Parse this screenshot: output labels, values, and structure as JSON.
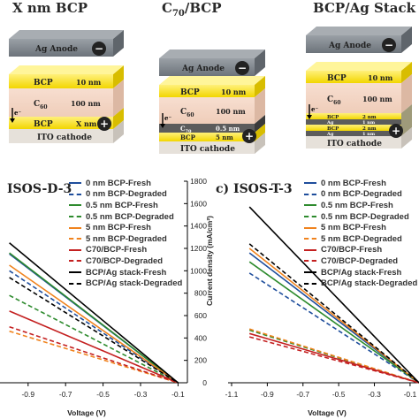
{
  "stacks": [
    {
      "title": "X nm BCP",
      "layers": [
        {
          "label": "Ag Anode",
          "thickness": ""
        },
        {
          "label": "BCP",
          "thickness": "10 nm"
        },
        {
          "label": "C",
          "sub": "60",
          "thickness": "100 nm"
        },
        {
          "label": "BCP",
          "thickness": "X nm"
        },
        {
          "label": "ITO cathode",
          "thickness": ""
        }
      ]
    },
    {
      "title_main": "C",
      "title_sub": "70",
      "title_rest": "/BCP",
      "layers": [
        {
          "label": "Ag Anode",
          "thickness": ""
        },
        {
          "label": "BCP",
          "thickness": "10 nm"
        },
        {
          "label": "C",
          "sub": "60",
          "thickness": "100 nm"
        },
        {
          "label": "C",
          "sub": "70",
          "thickness": "0.5 nm"
        },
        {
          "label": "BCP",
          "thickness": "5 nm"
        },
        {
          "label": "ITO cathode",
          "thickness": ""
        }
      ]
    },
    {
      "title": "BCP/Ag Stack",
      "layers": [
        {
          "label": "Ag Anode",
          "thickness": ""
        },
        {
          "label": "BCP",
          "thickness": "10 nm"
        },
        {
          "label": "C",
          "sub": "60",
          "thickness": "100 nm"
        },
        {
          "label": "BCP",
          "thickness": "2 nm"
        },
        {
          "label": "Ag",
          "thickness": "1 nm"
        },
        {
          "label": "BCP",
          "thickness": "2 nm"
        },
        {
          "label": "Ag",
          "thickness": "1 nm"
        },
        {
          "label": "ITO cathode",
          "thickness": ""
        }
      ]
    }
  ],
  "signs": {
    "minus": "−",
    "plus": "+",
    "electron": "e⁻"
  },
  "panel_b": {
    "title": "ISOS-D-3"
  },
  "panel_c": {
    "title": "c)  ISOS-T-3"
  },
  "legend": [
    {
      "label": "0 nm BCP-Fresh",
      "color": "#1f4e9c",
      "dash": false
    },
    {
      "label": "0 nm BCP-Degraded",
      "color": "#1f4e9c",
      "dash": true
    },
    {
      "label": "0.5 nm BCP-Fresh",
      "color": "#2e8b2e",
      "dash": false
    },
    {
      "label": "0.5 nm BCP-Degraded",
      "color": "#2e8b2e",
      "dash": true
    },
    {
      "label": "5 nm BCP-Fresh",
      "color": "#f0831e",
      "dash": false
    },
    {
      "label": "5 nm BCP-Degraded",
      "color": "#f0831e",
      "dash": true
    },
    {
      "label": "C70/BCP-Fresh",
      "color": "#c42020",
      "dash": false
    },
    {
      "label": "C70/BCP-Degraded",
      "color": "#c42020",
      "dash": true
    },
    {
      "label": "BCP/Ag stack-Fresh",
      "color": "#000000",
      "dash": false
    },
    {
      "label": "BCP/Ag stack-Degraded",
      "color": "#000000",
      "dash": true
    }
  ],
  "chart_data": [
    {
      "type": "line",
      "title": "ISOS-D-3",
      "xlabel": "Voltage (V)",
      "x_ticks": [
        "-0.9",
        "-0.7",
        "-0.5",
        "-0.3",
        "-0.1"
      ],
      "series": [
        {
          "name": "0 nm BCP-Fresh",
          "x": [
            -1.0,
            -0.1
          ],
          "y": [
            1150,
            0
          ]
        },
        {
          "name": "0 nm BCP-Degraded",
          "x": [
            -1.0,
            -0.1
          ],
          "y": [
            1000,
            0
          ]
        },
        {
          "name": "0.5 nm BCP-Fresh",
          "x": [
            -1.0,
            -0.1
          ],
          "y": [
            1160,
            0
          ]
        },
        {
          "name": "0.5 nm BCP-Degraded",
          "x": [
            -1.0,
            -0.1
          ],
          "y": [
            780,
            0
          ]
        },
        {
          "name": "5 nm BCP-Fresh",
          "x": [
            -1.0,
            -0.1
          ],
          "y": [
            1050,
            0
          ]
        },
        {
          "name": "5 nm BCP-Degraded",
          "x": [
            -1.0,
            -0.1
          ],
          "y": [
            460,
            0
          ]
        },
        {
          "name": "C70/BCP-Fresh",
          "x": [
            -1.0,
            -0.1
          ],
          "y": [
            640,
            0
          ]
        },
        {
          "name": "C70/BCP-Degraded",
          "x": [
            -1.0,
            -0.1
          ],
          "y": [
            500,
            0
          ]
        },
        {
          "name": "BCP/Ag stack-Fresh",
          "x": [
            -1.0,
            -0.1
          ],
          "y": [
            1250,
            0
          ]
        },
        {
          "name": "BCP/Ag stack-Degraded",
          "x": [
            -1.0,
            -0.1
          ],
          "y": [
            940,
            0
          ]
        }
      ]
    },
    {
      "type": "line",
      "title": "ISOS-T-3",
      "ylabel": "Current density (mA/cm²)",
      "xlabel": "Voltage (V)",
      "ylim": [
        0,
        1800
      ],
      "y_ticks": [
        "0",
        "200",
        "400",
        "600",
        "800",
        "1000",
        "1200",
        "1400",
        "1600",
        "1800"
      ],
      "x_ticks": [
        "-1.1",
        "-0.9",
        "-0.7",
        "-0.5",
        "-0.3",
        "-0.1"
      ],
      "series": [
        {
          "name": "0 nm BCP-Fresh",
          "x": [
            -1.0,
            -0.05
          ],
          "y": [
            1160,
            0
          ]
        },
        {
          "name": "0 nm BCP-Degraded",
          "x": [
            -1.0,
            -0.05
          ],
          "y": [
            980,
            0
          ]
        },
        {
          "name": "0.5 nm BCP-Fresh",
          "x": [
            -1.0,
            -0.05
          ],
          "y": [
            1080,
            0
          ]
        },
        {
          "name": "0.5 nm BCP-Degraded",
          "x": [
            -1.0,
            -0.05
          ],
          "y": [
            470,
            0
          ]
        },
        {
          "name": "5 nm BCP-Fresh",
          "x": [
            -1.0,
            -0.05
          ],
          "y": [
            1200,
            0
          ]
        },
        {
          "name": "5 nm BCP-Degraded",
          "x": [
            -1.0,
            -0.05
          ],
          "y": [
            480,
            0
          ]
        },
        {
          "name": "C70/BCP-Fresh",
          "x": [
            -1.0,
            -0.05
          ],
          "y": [
            440,
            0
          ]
        },
        {
          "name": "C70/BCP-Degraded",
          "x": [
            -1.0,
            -0.05
          ],
          "y": [
            410,
            0
          ]
        },
        {
          "name": "BCP/Ag stack-Fresh",
          "x": [
            -1.0,
            -0.05
          ],
          "y": [
            1570,
            0
          ]
        },
        {
          "name": "BCP/Ag stack-Degraded",
          "x": [
            -1.0,
            -0.05
          ],
          "y": [
            1240,
            0
          ]
        }
      ]
    }
  ]
}
